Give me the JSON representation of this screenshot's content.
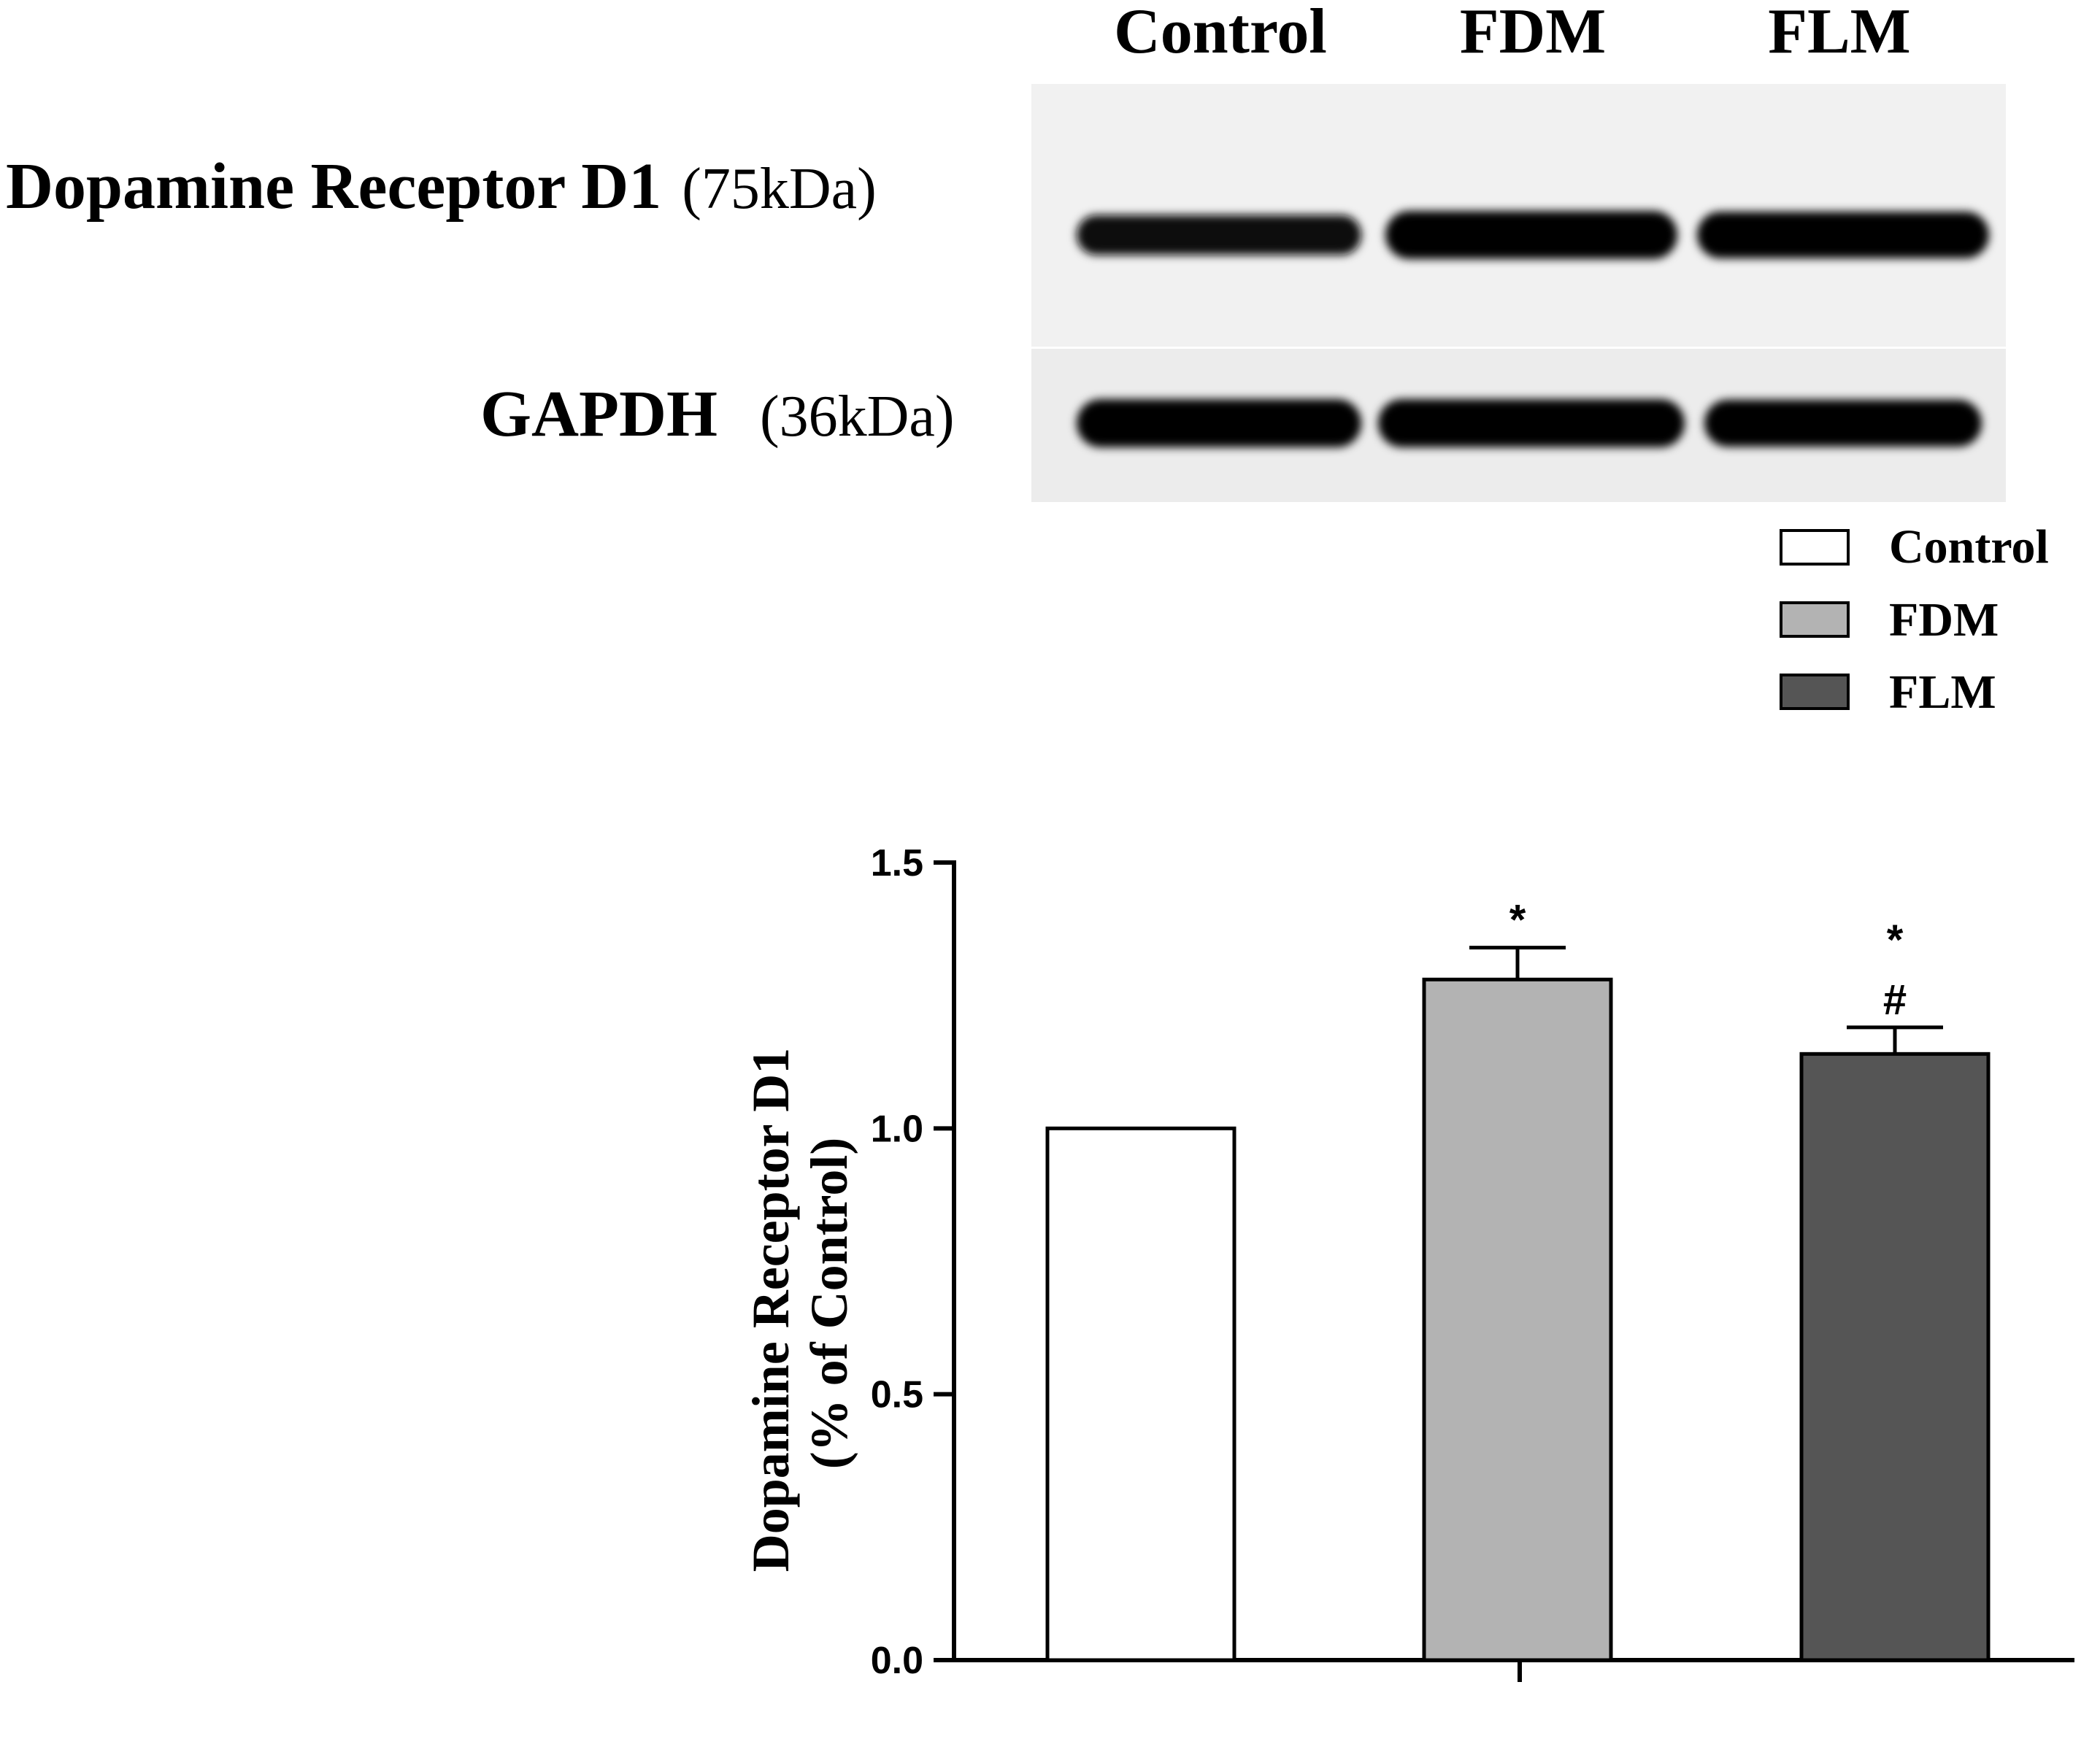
{
  "blot": {
    "lanes": [
      "Control",
      "FDM",
      "FLM"
    ],
    "rows": [
      {
        "name": "Dopamine Receptor D1",
        "size": "(75kDa)",
        "intensities": [
          0.72,
          1.0,
          0.95
        ]
      },
      {
        "name": "GAPDH",
        "size": "(36kDa)",
        "intensities": [
          1.0,
          1.0,
          0.96
        ]
      }
    ]
  },
  "legend": {
    "position": "top-right",
    "items": [
      {
        "label": "Control",
        "color": "#ffffff"
      },
      {
        "label": "FDM",
        "color": "#b3b3b3"
      },
      {
        "label": "FLM",
        "color": "#555555"
      }
    ]
  },
  "chart_data": {
    "type": "bar",
    "title": "",
    "xlabel": "",
    "ylabel_lines": [
      "Dopamine Receptor D1",
      "(% of Control)"
    ],
    "categories": [
      "Control",
      "FDM",
      "FLM"
    ],
    "values": [
      1.0,
      1.28,
      1.14
    ],
    "errors": [
      null,
      0.06,
      0.05
    ],
    "colors": [
      "#ffffff",
      "#b3b3b3",
      "#555555"
    ],
    "annotations": [
      [],
      [
        "*"
      ],
      [
        "*",
        "#"
      ]
    ],
    "ylim": [
      0,
      1.5
    ],
    "yticks": [
      "0.0",
      "0.5",
      "1.0",
      "1.5"
    ],
    "grid": false
  }
}
